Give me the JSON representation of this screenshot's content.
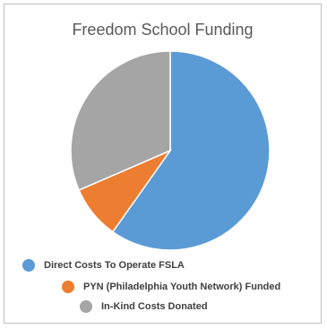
{
  "chart_data": {
    "type": "pie",
    "title": "Freedom School Funding",
    "categories": [
      "Direct Costs To Operate FSLA",
      "PYN (Philadelphia Youth Network) Funded",
      "In-Kind Costs Donated"
    ],
    "values": [
      59.8,
      8.7,
      31.5
    ],
    "colors": [
      "#5b9bd5",
      "#ed7d31",
      "#a5a5a5"
    ],
    "legend": "bottom"
  }
}
